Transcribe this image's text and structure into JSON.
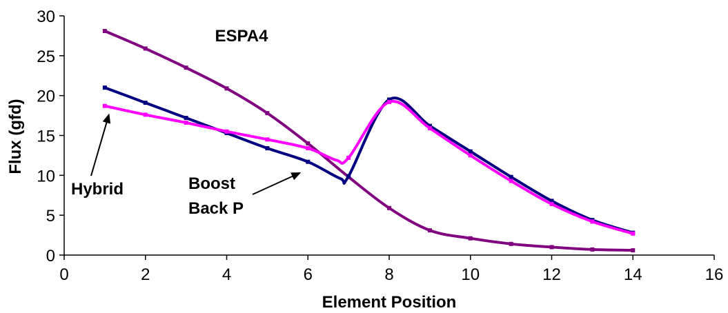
{
  "chart_data": {
    "type": "line",
    "title": "ESPA4",
    "xlabel": "Element Position",
    "ylabel": "Flux (gfd)",
    "xlim": [
      0,
      16
    ],
    "ylim": [
      0,
      30
    ],
    "xticks": [
      "0",
      "2",
      "4",
      "6",
      "8",
      "10",
      "12",
      "14",
      "16"
    ],
    "yticks": [
      "0",
      "5",
      "10",
      "15",
      "20",
      "25",
      "30"
    ],
    "grid": false,
    "legend": "none",
    "series": [
      {
        "color": "#800080",
        "x": [
          1,
          2,
          3,
          4,
          5,
          6,
          7,
          8,
          9,
          10,
          11,
          12,
          13,
          14
        ],
        "y": [
          28.1,
          25.9,
          23.5,
          20.9,
          17.8,
          14.0,
          9.8,
          5.9,
          3.1,
          2.1,
          1.4,
          1.0,
          0.7,
          0.6
        ]
      },
      {
        "name": "Boost Back P",
        "color": "#000080",
        "x": [
          1,
          2,
          3,
          4,
          5,
          6,
          6.8,
          7,
          8,
          9,
          10,
          11,
          12,
          13,
          14
        ],
        "y": [
          21.0,
          19.1,
          17.2,
          15.3,
          13.4,
          11.7,
          9.6,
          9.9,
          19.5,
          16.2,
          13.0,
          9.8,
          6.8,
          4.4,
          2.8
        ]
      },
      {
        "name": "Hybrid",
        "color": "#FF00FF",
        "x": [
          1,
          2,
          3,
          4,
          5,
          6,
          6.7,
          7,
          8,
          9,
          10,
          11,
          12,
          13,
          14
        ],
        "y": [
          18.7,
          17.6,
          16.6,
          15.5,
          14.5,
          13.4,
          11.9,
          12.2,
          19.2,
          15.9,
          12.5,
          9.3,
          6.4,
          4.2,
          2.7
        ]
      }
    ],
    "annotations": [
      {
        "text": "Hybrid",
        "points_to": [
          1.1,
          17.6
        ]
      },
      {
        "text": "Boost Back P",
        "lines": [
          "Boost",
          "Back P"
        ],
        "points_to": [
          5.8,
          10.3
        ]
      }
    ]
  }
}
